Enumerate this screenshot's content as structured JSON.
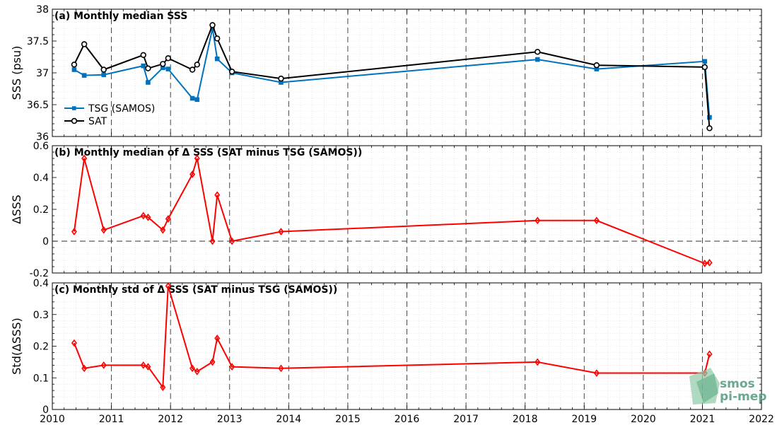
{
  "chart_data": [
    {
      "type": "line",
      "title": "(a) Monthly median SSS",
      "ylabel": "SSS (psu)",
      "xlim": [
        2010,
        2022
      ],
      "ylim": [
        36,
        38
      ],
      "yticks": [
        36,
        36.5,
        37,
        37.5,
        38
      ],
      "ytick_labels": [
        "36",
        "36.5",
        "37",
        "37.5",
        "38"
      ],
      "grid": true,
      "legend_position": "bottom-left",
      "series": [
        {
          "name": "TSG (SAMOS)",
          "color": "#0072BD",
          "marker": "square",
          "x": [
            2010.37,
            2010.54,
            2010.87,
            2011.54,
            2011.62,
            2011.87,
            2011.96,
            2012.37,
            2012.45,
            2012.71,
            2012.79,
            2013.04,
            2013.87,
            2018.21,
            2019.21,
            2021.04,
            2021.12
          ],
          "values": [
            37.05,
            36.96,
            36.97,
            37.11,
            36.85,
            37.08,
            37.06,
            36.6,
            36.58,
            37.7,
            37.22,
            37.0,
            36.85,
            37.21,
            37.06,
            37.18,
            36.3
          ]
        },
        {
          "name": "SAT",
          "color": "#000000",
          "marker": "circle",
          "x": [
            2010.37,
            2010.54,
            2010.87,
            2011.54,
            2011.62,
            2011.87,
            2011.96,
            2012.37,
            2012.45,
            2012.71,
            2012.79,
            2013.04,
            2013.87,
            2018.21,
            2019.21,
            2021.04,
            2021.12
          ],
          "values": [
            37.13,
            37.45,
            37.05,
            37.28,
            37.07,
            37.14,
            37.23,
            37.05,
            37.13,
            37.75,
            37.54,
            37.02,
            36.91,
            37.33,
            37.12,
            37.09,
            36.13
          ]
        }
      ]
    },
    {
      "type": "line",
      "title": "(b) Monthly median of Δ SSS (SAT minus TSG (SAMOS))",
      "ylabel": "ΔSSS",
      "xlim": [
        2010,
        2022
      ],
      "ylim": [
        -0.2,
        0.6
      ],
      "yticks": [
        -0.2,
        0,
        0.2,
        0.4,
        0.6
      ],
      "ytick_labels": [
        "-0.2",
        "0",
        "0.2",
        "0.4",
        "0.6"
      ],
      "zero_line": true,
      "grid": true,
      "series": [
        {
          "color": "#FF0000",
          "marker": "diamond",
          "x": [
            2010.37,
            2010.54,
            2010.87,
            2011.54,
            2011.62,
            2011.87,
            2011.96,
            2012.37,
            2012.45,
            2012.71,
            2012.79,
            2013.04,
            2013.87,
            2018.21,
            2019.21,
            2021.04,
            2021.12
          ],
          "values": [
            0.06,
            0.52,
            0.07,
            0.16,
            0.15,
            0.07,
            0.14,
            0.42,
            0.52,
            0.0,
            0.29,
            0.0,
            0.06,
            0.13,
            0.13,
            -0.14,
            -0.135
          ]
        }
      ]
    },
    {
      "type": "line",
      "title": "(c) Monthly std of Δ SSS (SAT minus TSG (SAMOS))",
      "ylabel": "Std(ΔSSS)",
      "xlim": [
        2010,
        2022
      ],
      "ylim": [
        0,
        0.4
      ],
      "yticks": [
        0,
        0.1,
        0.2,
        0.3,
        0.4
      ],
      "ytick_labels": [
        "0",
        "0.1",
        "0.2",
        "0.3",
        "0.4"
      ],
      "grid": true,
      "xticks": [
        2010,
        2011,
        2012,
        2013,
        2014,
        2015,
        2016,
        2017,
        2018,
        2019,
        2020,
        2021,
        2022
      ],
      "xtick_labels": [
        "2010",
        "2011",
        "2012",
        "2013",
        "2014",
        "2015",
        "2016",
        "2017",
        "2018",
        "2019",
        "2020",
        "2021",
        "2022"
      ],
      "series": [
        {
          "color": "#FF0000",
          "marker": "diamond",
          "x": [
            2010.37,
            2010.54,
            2010.87,
            2011.54,
            2011.62,
            2011.87,
            2011.96,
            2012.37,
            2012.45,
            2012.71,
            2012.79,
            2013.04,
            2013.87,
            2018.21,
            2019.21,
            2021.04,
            2021.12
          ],
          "values": [
            0.21,
            0.13,
            0.14,
            0.14,
            0.135,
            0.07,
            0.39,
            0.13,
            0.12,
            0.15,
            0.225,
            0.135,
            0.13,
            0.15,
            0.115,
            0.115,
            0.175
          ]
        }
      ]
    }
  ],
  "logo": {
    "line1": "smos",
    "line2": "pi-mep"
  }
}
